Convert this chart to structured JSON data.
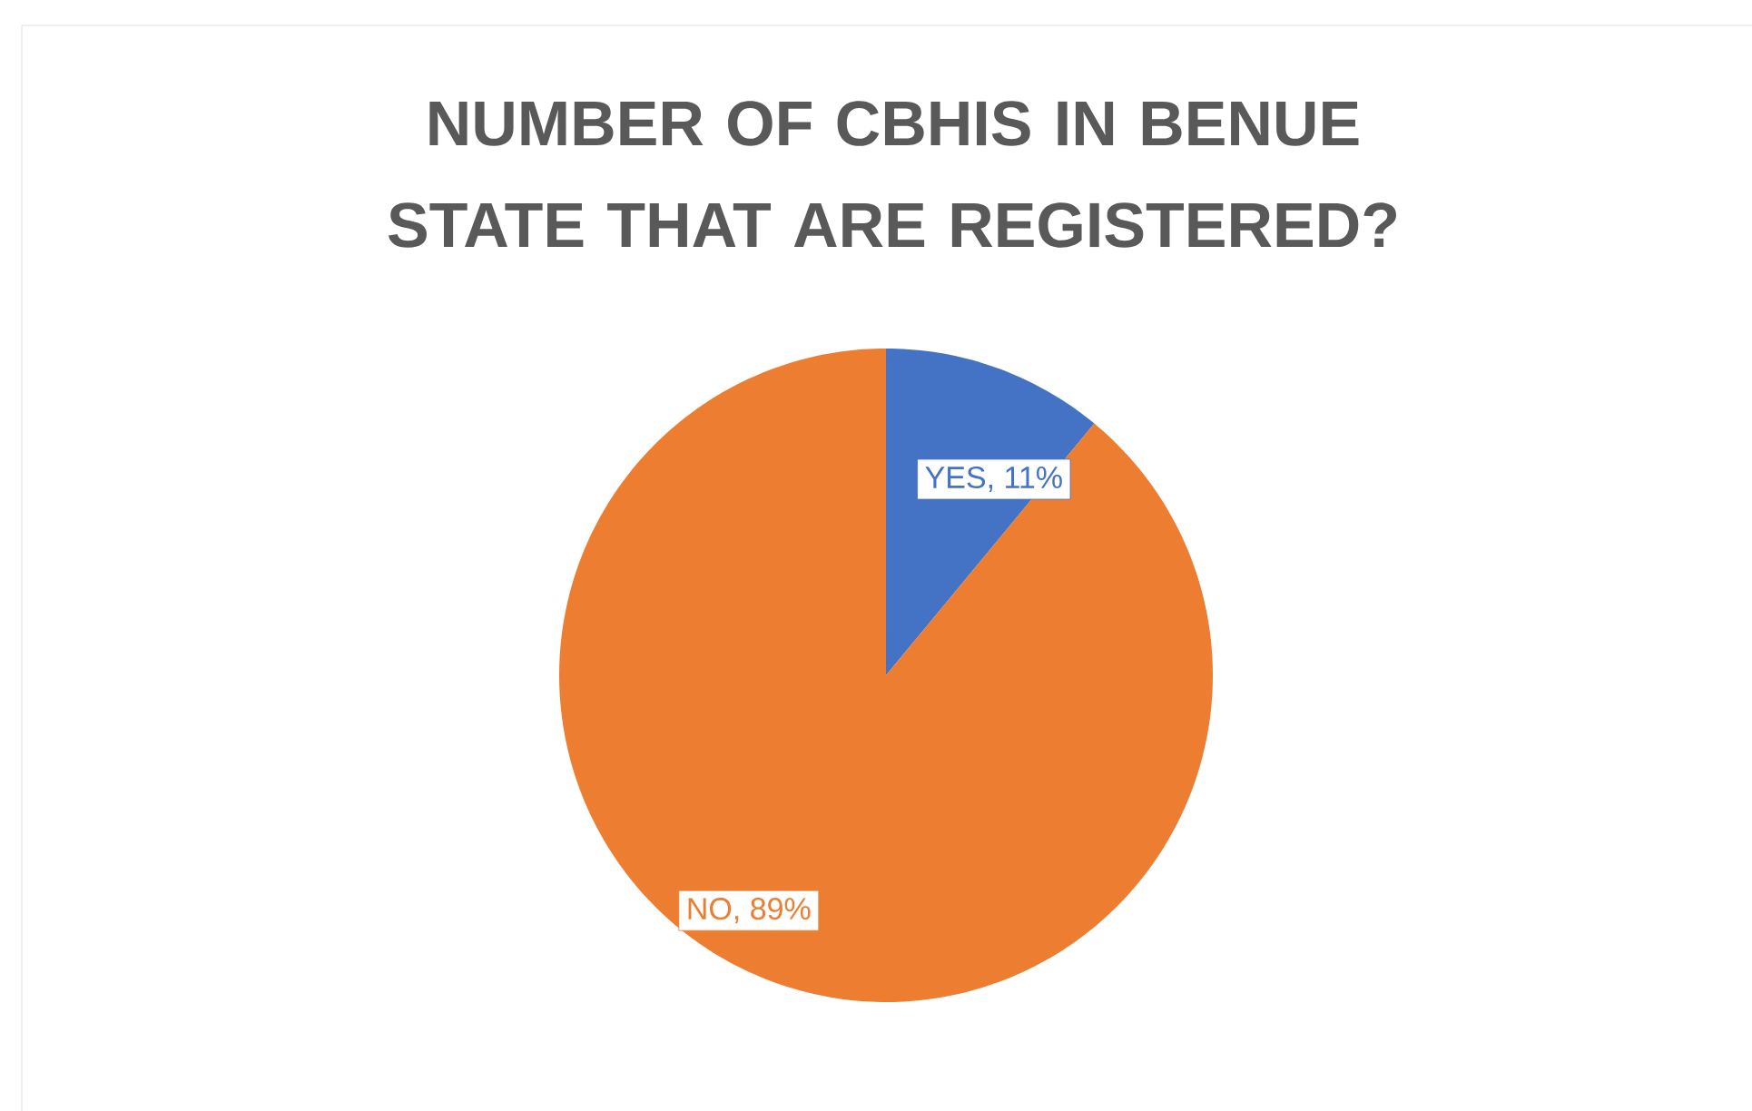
{
  "chart_data": {
    "type": "pie",
    "title": "NUMBER OF CBHIS IN BENUE STATE THAT ARE REGISTERED?",
    "categories": [
      "YES",
      "NO"
    ],
    "values": [
      11,
      89
    ],
    "colors": [
      "#4472c4",
      "#ed7d31"
    ],
    "value_labels": [
      ", 11%",
      ", 89%"
    ]
  }
}
